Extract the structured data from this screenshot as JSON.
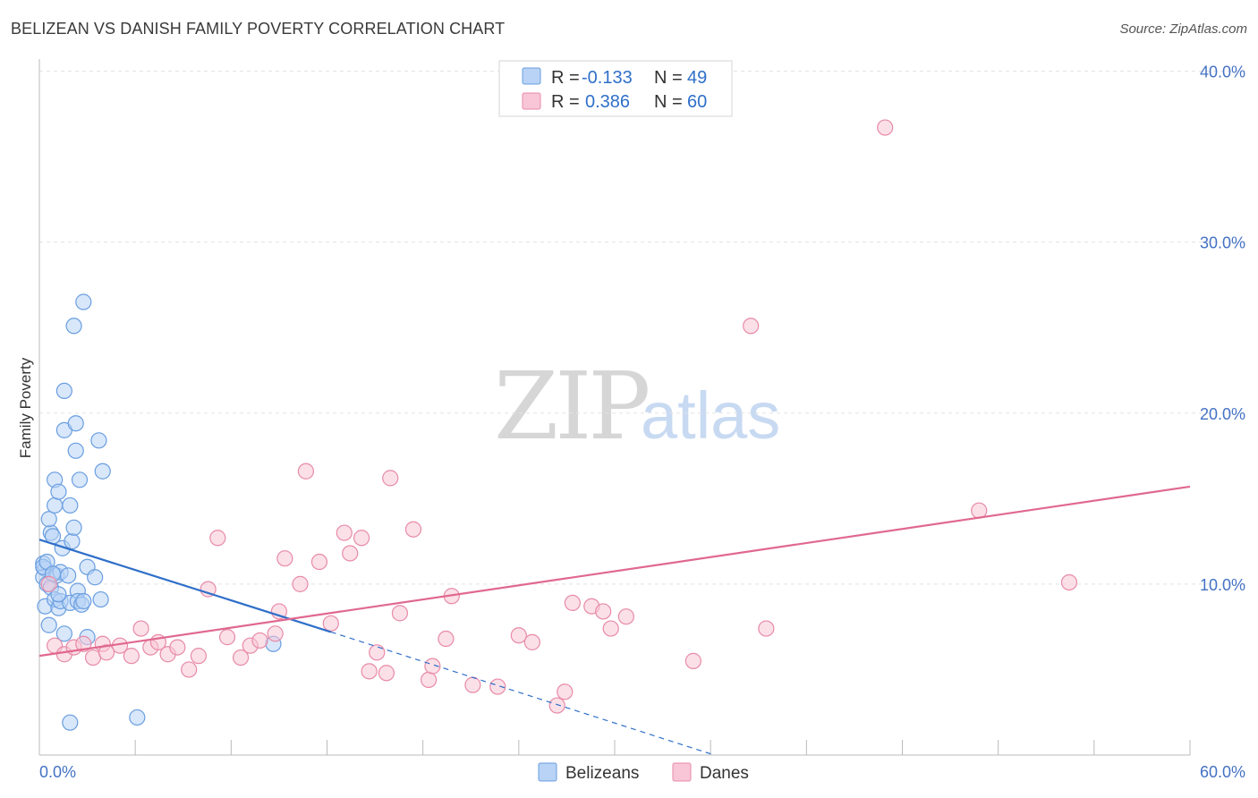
{
  "title": "BELIZEAN VS DANISH FAMILY POVERTY CORRELATION CHART",
  "source": "Source: ZipAtlas.com",
  "watermark": {
    "part1": "ZIP",
    "part2": "atlas"
  },
  "colors": {
    "belizeans_fill": "#b8d3f5",
    "belizeans_stroke": "#6a9ee0",
    "belizeans_line": "#2f6fc9",
    "danes_fill": "#f8c6d6",
    "danes_stroke": "#e88aa8",
    "danes_line": "#e0688f",
    "grid": "#e3e3e3",
    "axis_text": "#4472c4"
  },
  "legend": {
    "rows": [
      {
        "r_label": "R =",
        "r_value": "-0.133",
        "n_label": "N =",
        "n_value": "49"
      },
      {
        "r_label": "R =",
        "r_value": "0.386",
        "n_label": "N =",
        "n_value": "60"
      }
    ]
  },
  "bottom_legend": {
    "belizeans": "Belizeans",
    "danes": "Danes"
  },
  "chart_data": {
    "type": "scatter",
    "title": "BELIZEAN VS DANISH FAMILY POVERTY CORRELATION CHART",
    "xlabel": "",
    "ylabel": "Family Poverty",
    "xlim": [
      0,
      60
    ],
    "ylim": [
      0,
      40
    ],
    "x_tick_labels": [
      "0.0%",
      "60.0%"
    ],
    "y_ticks": [
      10,
      20,
      30,
      40
    ],
    "y_tick_labels": [
      "10.0%",
      "20.0%",
      "30.0%",
      "40.0%"
    ],
    "grid": true,
    "series": [
      {
        "name": "Belizeans",
        "r": -0.133,
        "n": 49,
        "trend": {
          "x0": 0,
          "y0": 12.6,
          "x1": 15.2,
          "y1": 7.2,
          "dash_to_x": 35.2,
          "dash_to_y": 0
        },
        "points": [
          [
            0.2,
            11.2
          ],
          [
            0.3,
            10.9
          ],
          [
            0.2,
            10.4
          ],
          [
            0.4,
            10.0
          ],
          [
            0.6,
            9.8
          ],
          [
            0.3,
            8.7
          ],
          [
            0.5,
            7.6
          ],
          [
            0.6,
            13.0
          ],
          [
            0.5,
            13.8
          ],
          [
            0.7,
            12.8
          ],
          [
            0.8,
            14.6
          ],
          [
            0.8,
            16.1
          ],
          [
            1.0,
            15.4
          ],
          [
            0.9,
            10.5
          ],
          [
            0.8,
            9.1
          ],
          [
            1.0,
            8.6
          ],
          [
            1.1,
            9.0
          ],
          [
            1.1,
            10.7
          ],
          [
            1.2,
            12.1
          ],
          [
            1.3,
            21.3
          ],
          [
            1.3,
            19.0
          ],
          [
            1.3,
            7.1
          ],
          [
            1.5,
            10.5
          ],
          [
            1.6,
            14.6
          ],
          [
            1.6,
            8.9
          ],
          [
            1.6,
            1.9
          ],
          [
            1.7,
            12.5
          ],
          [
            1.8,
            25.1
          ],
          [
            1.8,
            13.3
          ],
          [
            1.9,
            17.8
          ],
          [
            1.9,
            19.4
          ],
          [
            2.0,
            9.6
          ],
          [
            2.0,
            9.0
          ],
          [
            2.1,
            16.1
          ],
          [
            2.2,
            8.8
          ],
          [
            2.3,
            26.5
          ],
          [
            2.3,
            9.0
          ],
          [
            2.5,
            6.9
          ],
          [
            2.5,
            11.0
          ],
          [
            2.9,
            10.4
          ],
          [
            3.1,
            18.4
          ],
          [
            3.2,
            9.1
          ],
          [
            3.3,
            16.6
          ],
          [
            5.1,
            2.2
          ],
          [
            12.2,
            6.5
          ],
          [
            0.2,
            11.0
          ],
          [
            0.4,
            11.3
          ],
          [
            0.7,
            10.6
          ],
          [
            1.0,
            9.4
          ]
        ]
      },
      {
        "name": "Danes",
        "r": 0.386,
        "n": 60,
        "trend": {
          "x0": 0,
          "y0": 5.8,
          "x1": 60,
          "y1": 15.7
        },
        "points": [
          [
            0.5,
            10.0
          ],
          [
            0.8,
            6.4
          ],
          [
            1.3,
            5.9
          ],
          [
            1.8,
            6.3
          ],
          [
            2.3,
            6.5
          ],
          [
            2.8,
            5.7
          ],
          [
            3.3,
            6.5
          ],
          [
            3.5,
            6.0
          ],
          [
            4.2,
            6.4
          ],
          [
            4.8,
            5.8
          ],
          [
            5.3,
            7.4
          ],
          [
            5.8,
            6.3
          ],
          [
            6.2,
            6.6
          ],
          [
            6.7,
            5.9
          ],
          [
            7.2,
            6.3
          ],
          [
            7.8,
            5.0
          ],
          [
            8.3,
            5.8
          ],
          [
            8.8,
            9.7
          ],
          [
            9.3,
            12.7
          ],
          [
            9.8,
            6.9
          ],
          [
            10.5,
            5.7
          ],
          [
            11.0,
            6.4
          ],
          [
            11.5,
            6.7
          ],
          [
            12.3,
            7.1
          ],
          [
            12.5,
            8.4
          ],
          [
            12.8,
            11.5
          ],
          [
            13.6,
            10.0
          ],
          [
            13.9,
            16.6
          ],
          [
            14.6,
            11.3
          ],
          [
            15.2,
            7.7
          ],
          [
            15.9,
            13.0
          ],
          [
            16.2,
            11.8
          ],
          [
            16.8,
            12.7
          ],
          [
            17.2,
            4.9
          ],
          [
            17.6,
            6.0
          ],
          [
            18.1,
            4.8
          ],
          [
            18.3,
            16.2
          ],
          [
            18.8,
            8.3
          ],
          [
            19.5,
            13.2
          ],
          [
            20.3,
            4.4
          ],
          [
            20.5,
            5.2
          ],
          [
            21.2,
            6.8
          ],
          [
            21.5,
            9.3
          ],
          [
            22.6,
            4.1
          ],
          [
            23.9,
            4.0
          ],
          [
            25.0,
            7.0
          ],
          [
            25.7,
            6.6
          ],
          [
            27.0,
            2.9
          ],
          [
            27.4,
            3.7
          ],
          [
            27.8,
            8.9
          ],
          [
            28.8,
            8.7
          ],
          [
            29.4,
            8.4
          ],
          [
            29.8,
            7.4
          ],
          [
            30.6,
            8.1
          ],
          [
            34.1,
            5.5
          ],
          [
            37.1,
            25.1
          ],
          [
            37.9,
            7.4
          ],
          [
            44.1,
            36.7
          ],
          [
            49.0,
            14.3
          ],
          [
            53.7,
            10.1
          ]
        ]
      }
    ]
  }
}
